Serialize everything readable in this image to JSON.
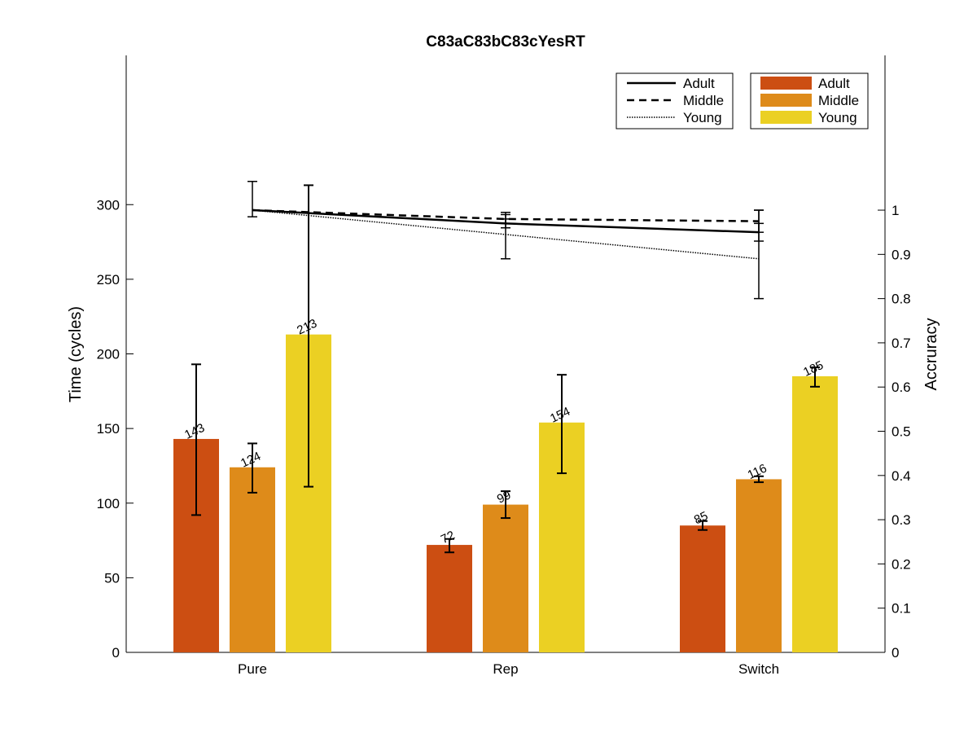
{
  "chart_data": {
    "type": "bar",
    "title": "C83aC83bC83cYesRT",
    "categories": [
      "Pure",
      "Rep",
      "Switch"
    ],
    "ylabel": "Time (cycles)",
    "ylim": [
      0,
      400
    ],
    "yticks": [
      0,
      50,
      100,
      150,
      200,
      250,
      300
    ],
    "y2label": "Accruracy",
    "y2lim": [
      0,
      1.35
    ],
    "y2ticks": [
      0,
      0.1,
      0.2,
      0.3,
      0.4,
      0.5,
      0.6,
      0.7,
      0.8,
      0.9,
      1
    ],
    "colors": {
      "Adult": "#cc4e12",
      "Middle": "#de8b1a",
      "Young": "#ebd023"
    },
    "bar_series": [
      {
        "name": "Adult",
        "values": [
          143,
          72,
          85
        ],
        "labels": [
          "143",
          "72",
          "85"
        ],
        "err_low": [
          92,
          67,
          82
        ],
        "err_high": [
          193,
          76,
          88
        ]
      },
      {
        "name": "Middle",
        "values": [
          124,
          99,
          116
        ],
        "labels": [
          "124",
          "99",
          "116"
        ],
        "err_low": [
          107,
          90,
          114
        ],
        "err_high": [
          140,
          108,
          118
        ]
      },
      {
        "name": "Young",
        "values": [
          213,
          154,
          185
        ],
        "labels": [
          "213",
          "154",
          "185"
        ],
        "err_low": [
          111,
          120,
          178
        ],
        "err_high": [
          313,
          186,
          191
        ]
      }
    ],
    "line_series": [
      {
        "name": "Adult",
        "style": "solid",
        "values": [
          1.0,
          0.97,
          0.95
        ],
        "err_low": [
          null,
          0.96,
          0.93
        ],
        "err_high": [
          null,
          0.98,
          0.97
        ]
      },
      {
        "name": "Middle",
        "style": "dashed",
        "values": [
          1.0,
          0.98,
          0.975
        ],
        "err_low": [
          null,
          0.97,
          0.95
        ],
        "err_high": [
          null,
          0.99,
          1.0
        ]
      },
      {
        "name": "Young",
        "style": "dotted",
        "values": [
          1.0,
          0.945,
          0.89
        ],
        "err_low": [
          0.985,
          0.89,
          0.8
        ],
        "err_high": [
          1.065,
          0.995,
          1.0
        ]
      }
    ],
    "legends": [
      {
        "position": "top-right inner",
        "entries": [
          "Adult",
          "Middle",
          "Young"
        ],
        "kind": "line"
      },
      {
        "position": "top-right",
        "entries": [
          "Adult",
          "Middle",
          "Young"
        ],
        "kind": "bar"
      }
    ]
  }
}
